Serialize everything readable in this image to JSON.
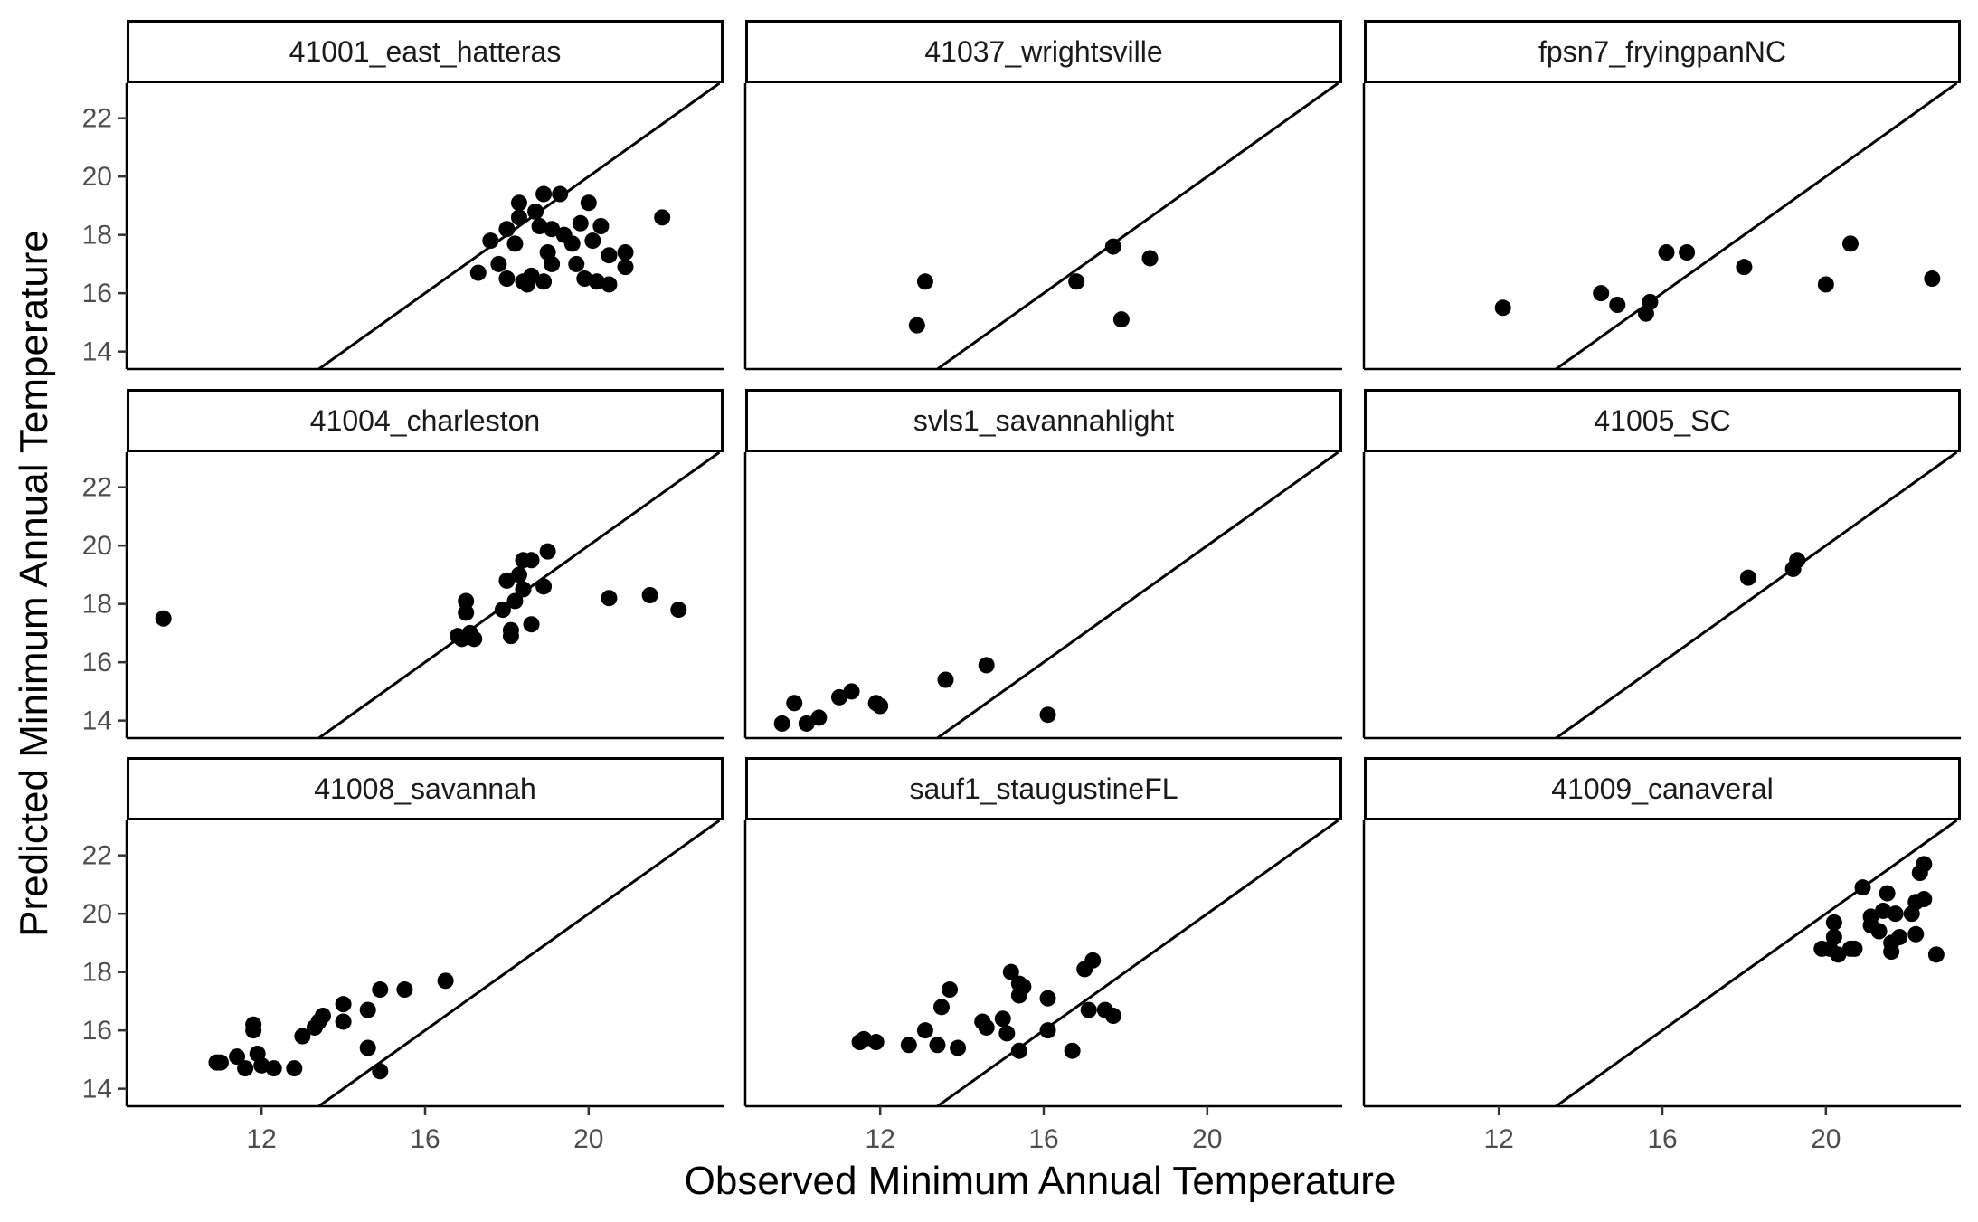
{
  "chart_data": {
    "type": "scatter",
    "xlabel": "Observed Minimum Annual Temperature",
    "ylabel": "Predicted Minimum Annual Temperature",
    "xlim": [
      8.7,
      23.3
    ],
    "ylim": [
      13.4,
      23.2
    ],
    "xticks": [
      12,
      16,
      20
    ],
    "yticks": [
      14,
      16,
      18,
      20,
      22
    ],
    "reference_line": "y = x",
    "grid": false,
    "panels": [
      {
        "name": "41001_east_hatteras",
        "points": [
          [
            17.3,
            16.7
          ],
          [
            17.6,
            17.8
          ],
          [
            17.8,
            17.0
          ],
          [
            18.0,
            18.2
          ],
          [
            18.0,
            16.5
          ],
          [
            18.2,
            17.7
          ],
          [
            18.3,
            18.6
          ],
          [
            18.3,
            19.1
          ],
          [
            18.4,
            16.4
          ],
          [
            18.5,
            16.3
          ],
          [
            18.6,
            16.6
          ],
          [
            18.7,
            18.8
          ],
          [
            18.8,
            18.3
          ],
          [
            18.9,
            16.4
          ],
          [
            18.9,
            19.4
          ],
          [
            19.0,
            17.4
          ],
          [
            19.1,
            18.2
          ],
          [
            19.1,
            17.0
          ],
          [
            19.3,
            19.4
          ],
          [
            19.4,
            18.0
          ],
          [
            19.6,
            17.7
          ],
          [
            19.7,
            17.0
          ],
          [
            19.8,
            18.4
          ],
          [
            19.9,
            16.5
          ],
          [
            20.0,
            19.1
          ],
          [
            20.1,
            17.8
          ],
          [
            20.2,
            16.4
          ],
          [
            20.3,
            18.3
          ],
          [
            20.5,
            17.3
          ],
          [
            20.5,
            16.3
          ],
          [
            20.9,
            17.4
          ],
          [
            20.9,
            16.9
          ],
          [
            21.8,
            18.6
          ]
        ]
      },
      {
        "name": "41037_wrightsville",
        "points": [
          [
            12.9,
            14.9
          ],
          [
            13.1,
            16.4
          ],
          [
            16.8,
            16.4
          ],
          [
            17.7,
            17.6
          ],
          [
            17.9,
            15.1
          ],
          [
            18.6,
            17.2
          ]
        ]
      },
      {
        "name": "fpsn7_fryingpanNC",
        "points": [
          [
            12.1,
            15.5
          ],
          [
            14.5,
            16.0
          ],
          [
            14.9,
            15.6
          ],
          [
            15.6,
            15.3
          ],
          [
            15.7,
            15.7
          ],
          [
            16.1,
            17.4
          ],
          [
            16.6,
            17.4
          ],
          [
            18.0,
            16.9
          ],
          [
            20.0,
            16.3
          ],
          [
            20.6,
            17.7
          ],
          [
            22.6,
            16.5
          ]
        ]
      },
      {
        "name": "41004_charleston",
        "points": [
          [
            9.6,
            17.5
          ],
          [
            16.8,
            16.9
          ],
          [
            16.9,
            16.8
          ],
          [
            17.0,
            18.1
          ],
          [
            17.0,
            17.7
          ],
          [
            17.1,
            17.0
          ],
          [
            17.2,
            16.8
          ],
          [
            17.9,
            17.8
          ],
          [
            18.0,
            18.8
          ],
          [
            18.1,
            17.1
          ],
          [
            18.1,
            16.9
          ],
          [
            18.2,
            18.1
          ],
          [
            18.3,
            19.0
          ],
          [
            18.4,
            18.5
          ],
          [
            18.4,
            19.5
          ],
          [
            18.6,
            19.5
          ],
          [
            18.6,
            17.3
          ],
          [
            18.9,
            18.6
          ],
          [
            19.0,
            19.8
          ],
          [
            20.5,
            18.2
          ],
          [
            21.5,
            18.3
          ],
          [
            22.2,
            17.8
          ]
        ]
      },
      {
        "name": "svls1_savannahlight",
        "points": [
          [
            9.6,
            13.9
          ],
          [
            9.9,
            14.6
          ],
          [
            10.2,
            13.9
          ],
          [
            10.5,
            14.1
          ],
          [
            11.0,
            14.8
          ],
          [
            11.3,
            15.0
          ],
          [
            11.9,
            14.6
          ],
          [
            12.0,
            14.5
          ],
          [
            13.6,
            15.4
          ],
          [
            14.6,
            15.9
          ],
          [
            16.1,
            14.2
          ]
        ]
      },
      {
        "name": "41005_SC",
        "points": [
          [
            18.1,
            18.9
          ],
          [
            19.2,
            19.2
          ],
          [
            19.3,
            19.5
          ]
        ]
      },
      {
        "name": "41008_savannah",
        "points": [
          [
            10.9,
            14.9
          ],
          [
            11.0,
            14.9
          ],
          [
            11.4,
            15.1
          ],
          [
            11.6,
            14.7
          ],
          [
            11.8,
            16.2
          ],
          [
            11.8,
            16.0
          ],
          [
            11.9,
            15.2
          ],
          [
            12.0,
            14.8
          ],
          [
            12.3,
            14.7
          ],
          [
            12.8,
            14.7
          ],
          [
            13.0,
            15.8
          ],
          [
            13.3,
            16.1
          ],
          [
            13.4,
            16.3
          ],
          [
            13.5,
            16.5
          ],
          [
            14.0,
            16.9
          ],
          [
            14.0,
            16.3
          ],
          [
            14.6,
            16.7
          ],
          [
            14.6,
            15.4
          ],
          [
            14.9,
            14.6
          ],
          [
            14.9,
            17.4
          ],
          [
            15.5,
            17.4
          ],
          [
            16.5,
            17.7
          ]
        ]
      },
      {
        "name": "sauf1_staugustineFL",
        "points": [
          [
            11.5,
            15.6
          ],
          [
            11.6,
            15.7
          ],
          [
            11.9,
            15.6
          ],
          [
            12.7,
            15.5
          ],
          [
            13.1,
            16.0
          ],
          [
            13.4,
            15.5
          ],
          [
            13.5,
            16.8
          ],
          [
            13.7,
            17.4
          ],
          [
            13.9,
            15.4
          ],
          [
            14.5,
            16.3
          ],
          [
            14.6,
            16.1
          ],
          [
            15.0,
            16.4
          ],
          [
            15.1,
            15.9
          ],
          [
            15.2,
            18.0
          ],
          [
            15.4,
            17.6
          ],
          [
            15.4,
            17.2
          ],
          [
            15.4,
            15.3
          ],
          [
            15.5,
            17.5
          ],
          [
            16.1,
            17.1
          ],
          [
            16.1,
            16.0
          ],
          [
            16.7,
            15.3
          ],
          [
            17.0,
            18.1
          ],
          [
            17.2,
            18.4
          ],
          [
            17.1,
            16.7
          ],
          [
            17.5,
            16.7
          ],
          [
            17.7,
            16.5
          ]
        ]
      },
      {
        "name": "41009_canaveral",
        "points": [
          [
            19.9,
            18.8
          ],
          [
            20.1,
            18.8
          ],
          [
            20.2,
            19.7
          ],
          [
            20.2,
            19.2
          ],
          [
            20.3,
            18.6
          ],
          [
            20.6,
            18.8
          ],
          [
            20.7,
            18.8
          ],
          [
            20.9,
            20.9
          ],
          [
            21.1,
            19.6
          ],
          [
            21.1,
            19.9
          ],
          [
            21.3,
            19.4
          ],
          [
            21.4,
            20.1
          ],
          [
            21.5,
            20.7
          ],
          [
            21.6,
            18.7
          ],
          [
            21.6,
            19.0
          ],
          [
            21.7,
            20.0
          ],
          [
            21.8,
            19.2
          ],
          [
            22.1,
            20.0
          ],
          [
            22.2,
            20.4
          ],
          [
            22.2,
            19.3
          ],
          [
            22.3,
            21.4
          ],
          [
            22.4,
            20.5
          ],
          [
            22.4,
            21.7
          ],
          [
            22.7,
            18.6
          ]
        ]
      }
    ]
  }
}
